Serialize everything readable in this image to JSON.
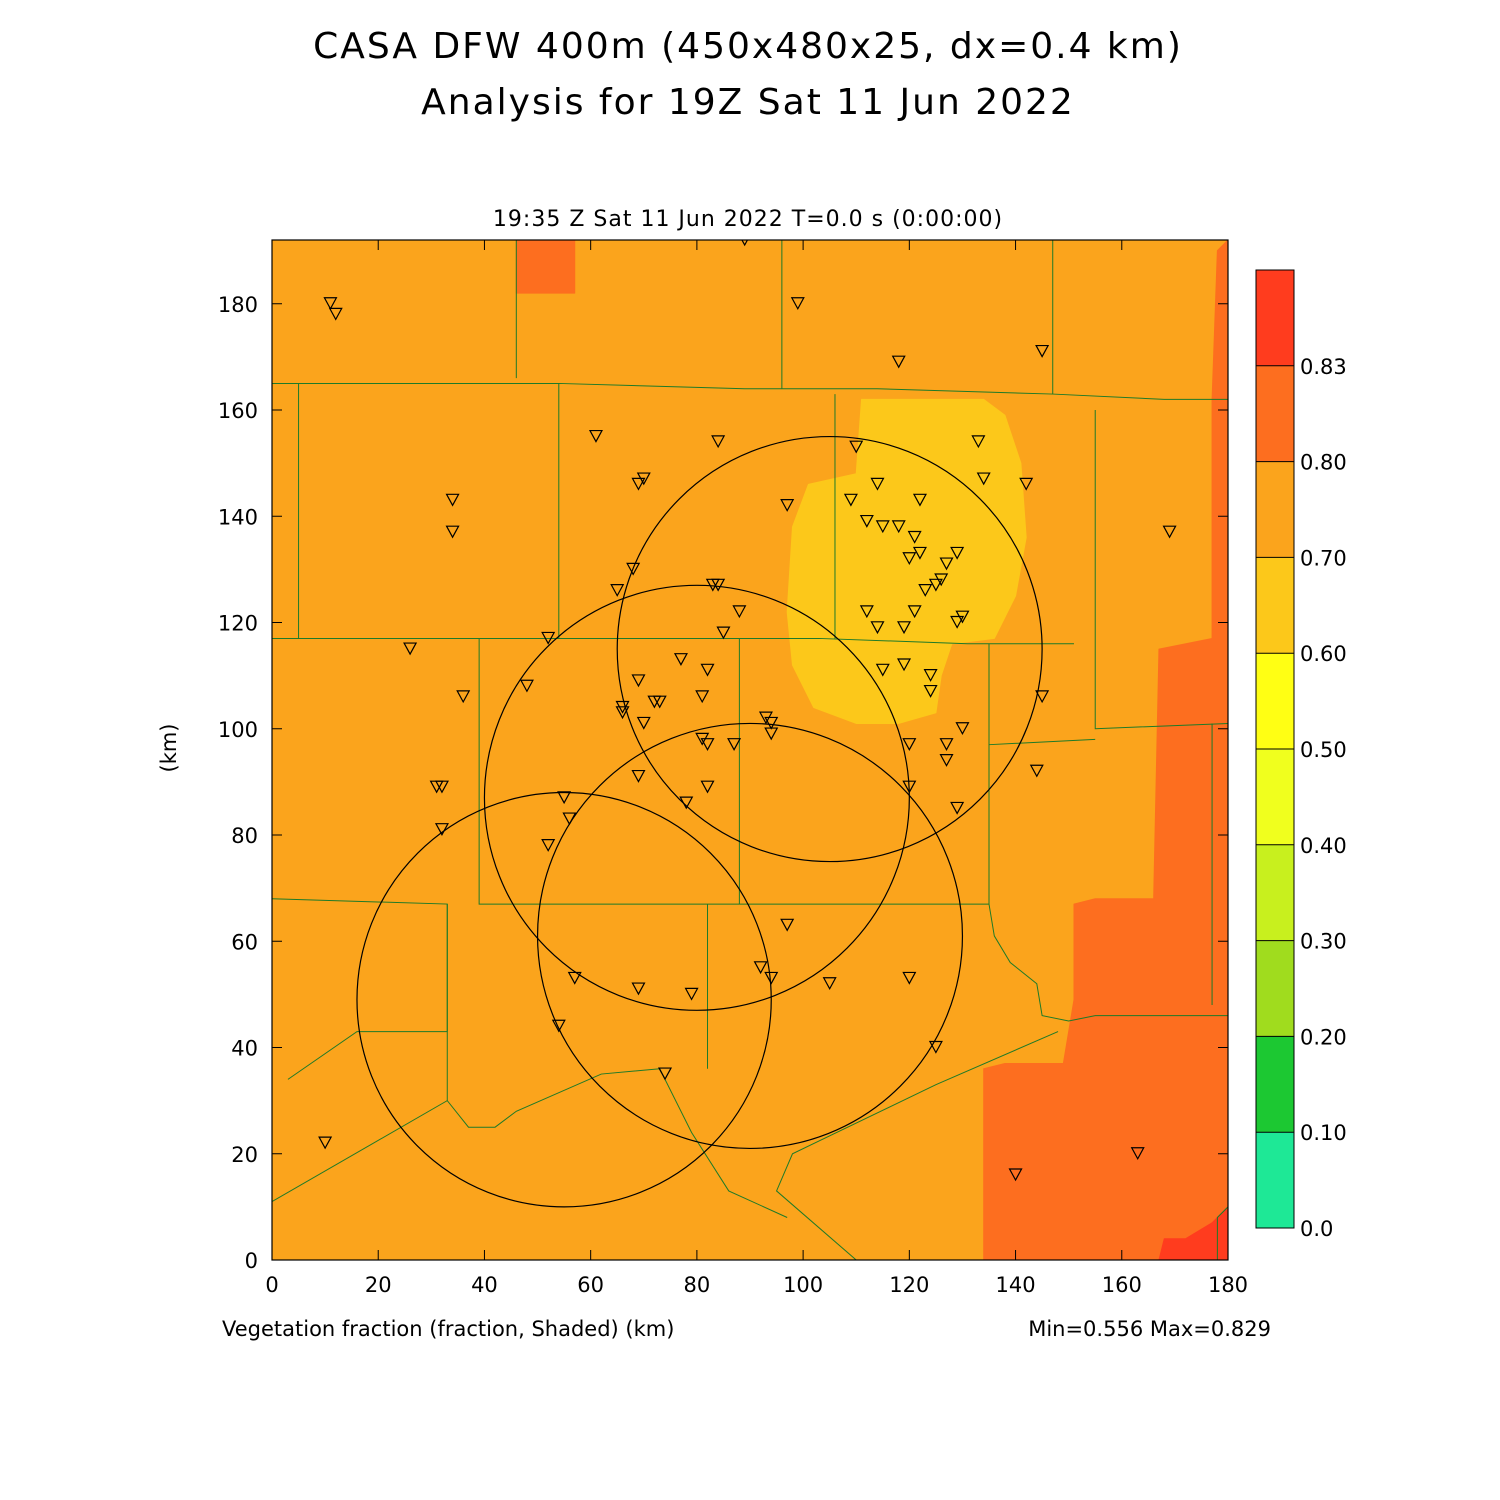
{
  "title": {
    "line1": "CASA DFW 400m (450x480x25, dx=0.4 km)",
    "line2": "Analysis for 19Z Sat 11 Jun 2022"
  },
  "subtitle": "19:35 Z Sat 11 Jun 2022   T=0.0 s (0:00:00)",
  "footer": {
    "field_label": "Vegetation fraction (fraction, Shaded)  (km)",
    "minmax": "Min=0.556 Max=0.829"
  },
  "chart_data": {
    "type": "heatmap",
    "field": "Vegetation fraction",
    "units": "fraction",
    "xlabel": "",
    "ylabel": "(km)",
    "xlim": [
      0,
      180
    ],
    "ylim": [
      0,
      192
    ],
    "x_ticks": [
      0,
      20,
      40,
      60,
      80,
      100,
      120,
      140,
      160,
      180
    ],
    "y_ticks": [
      0,
      20,
      40,
      60,
      80,
      100,
      120,
      140,
      160,
      180
    ],
    "colorbar": {
      "levels": [
        "0.0",
        "0.10",
        "0.20",
        "0.30",
        "0.40",
        "0.50",
        "0.60",
        "0.70",
        "0.80",
        "0.83"
      ],
      "colors": [
        "#1ee896",
        "#1cc832",
        "#a0dc1e",
        "#c8f01e",
        "#f0ff1e",
        "#ffff14",
        "#fcc81a",
        "#fba41c",
        "#fd6e1f",
        "#ff3c1e"
      ]
    },
    "background_color": "#fba41c",
    "shaded_regions": [
      {
        "level": "0.50-0.60",
        "color": "#fcc81a",
        "points": [
          [
            111,
            162
          ],
          [
            134,
            162
          ],
          [
            138,
            159
          ],
          [
            141,
            150
          ],
          [
            142,
            136
          ],
          [
            140,
            125
          ],
          [
            136,
            117
          ],
          [
            128,
            116
          ],
          [
            126,
            110
          ],
          [
            125,
            103
          ],
          [
            118,
            101
          ],
          [
            110,
            101
          ],
          [
            102,
            104
          ],
          [
            98,
            112
          ],
          [
            97,
            122
          ],
          [
            98,
            138
          ],
          [
            101,
            146
          ],
          [
            110,
            148
          ]
        ]
      },
      {
        "level": "0.70-0.80",
        "color": "#fd6e1f",
        "points": [
          [
            46,
            192
          ],
          [
            57,
            192
          ],
          [
            57,
            182
          ],
          [
            46,
            182
          ]
        ]
      },
      {
        "level": "0.70-0.80",
        "color": "#fd6e1f",
        "points": [
          [
            134,
            0
          ],
          [
            134,
            36
          ],
          [
            138,
            37
          ],
          [
            149,
            37
          ],
          [
            151,
            49
          ],
          [
            151,
            67
          ],
          [
            155,
            68
          ],
          [
            166,
            68
          ],
          [
            167,
            115
          ],
          [
            177,
            117
          ],
          [
            177,
            162
          ],
          [
            178,
            190
          ],
          [
            180,
            192
          ],
          [
            180,
            0
          ]
        ]
      },
      {
        "level": "0.80-0.83",
        "color": "#ff3c1e",
        "points": [
          [
            167,
            0
          ],
          [
            168,
            4
          ],
          [
            172,
            4
          ],
          [
            177,
            7
          ],
          [
            180,
            10
          ],
          [
            180,
            0
          ]
        ]
      }
    ],
    "range_rings": [
      {
        "center": [
          105,
          115
        ],
        "radius": 40
      },
      {
        "center": [
          80,
          87
        ],
        "radius": 40
      },
      {
        "center": [
          90,
          61
        ],
        "radius": 40
      },
      {
        "center": [
          55,
          49
        ],
        "radius": 39
      }
    ],
    "county_boundaries": [
      [
        [
          0,
          165
        ],
        [
          54,
          165
        ],
        [
          89,
          164
        ],
        [
          114,
          164
        ],
        [
          147,
          163
        ],
        [
          168,
          162
        ],
        [
          180,
          162
        ]
      ],
      [
        [
          5,
          165
        ],
        [
          5,
          117
        ]
      ],
      [
        [
          0,
          117
        ],
        [
          39,
          117
        ],
        [
          78,
          117
        ],
        [
          103,
          117
        ],
        [
          131,
          116
        ],
        [
          151,
          116
        ]
      ],
      [
        [
          54,
          165
        ],
        [
          54,
          117
        ]
      ],
      [
        [
          106,
          163
        ],
        [
          106,
          117
        ]
      ],
      [
        [
          46,
          192
        ],
        [
          46,
          166
        ]
      ],
      [
        [
          96,
          192
        ],
        [
          96,
          164
        ]
      ],
      [
        [
          147,
          192
        ],
        [
          147,
          163
        ]
      ],
      [
        [
          155,
          160
        ],
        [
          155,
          100
        ],
        [
          180,
          101
        ]
      ],
      [
        [
          39,
          117
        ],
        [
          39,
          67
        ],
        [
          88,
          67
        ],
        [
          135,
          67
        ],
        [
          135,
          116
        ]
      ],
      [
        [
          88,
          117
        ],
        [
          88,
          67
        ]
      ],
      [
        [
          135,
          97
        ],
        [
          155,
          98
        ]
      ],
      [
        [
          0,
          68
        ],
        [
          33,
          67
        ],
        [
          33,
          43
        ]
      ],
      [
        [
          33,
          67
        ],
        [
          33,
          30
        ],
        [
          37,
          25
        ],
        [
          42,
          25
        ],
        [
          46,
          28
        ],
        [
          62,
          35
        ],
        [
          73,
          36
        ],
        [
          79,
          24
        ],
        [
          86,
          13
        ],
        [
          97,
          8
        ]
      ],
      [
        [
          82,
          67
        ],
        [
          82,
          36
        ]
      ],
      [
        [
          0,
          11
        ],
        [
          33,
          30
        ]
      ],
      [
        [
          3,
          34
        ],
        [
          16,
          43
        ],
        [
          33,
          43
        ]
      ],
      [
        [
          135,
          67
        ],
        [
          136,
          61
        ],
        [
          139,
          56
        ],
        [
          144,
          52
        ],
        [
          145,
          46
        ],
        [
          150,
          45
        ],
        [
          155,
          46
        ],
        [
          180,
          46
        ]
      ],
      [
        [
          177,
          101
        ],
        [
          177,
          48
        ]
      ],
      [
        [
          148,
          43
        ],
        [
          125,
          33
        ],
        [
          98,
          20
        ],
        [
          95,
          13
        ],
        [
          110,
          0
        ]
      ],
      [
        [
          178,
          0
        ],
        [
          178,
          8
        ],
        [
          180,
          10
        ]
      ]
    ],
    "stations": [
      [
        11,
        180
      ],
      [
        12,
        178
      ],
      [
        89,
        192
      ],
      [
        99,
        180
      ],
      [
        118,
        169
      ],
      [
        145,
        171
      ],
      [
        34,
        143
      ],
      [
        34,
        137
      ],
      [
        61,
        155
      ],
      [
        70,
        147
      ],
      [
        69,
        146
      ],
      [
        84,
        154
      ],
      [
        97,
        142
      ],
      [
        110,
        153
      ],
      [
        114,
        146
      ],
      [
        109,
        143
      ],
      [
        112,
        139
      ],
      [
        115,
        138
      ],
      [
        118,
        138
      ],
      [
        122,
        143
      ],
      [
        133,
        154
      ],
      [
        134,
        147
      ],
      [
        142,
        146
      ],
      [
        169,
        137
      ],
      [
        121,
        136
      ],
      [
        120,
        132
      ],
      [
        122,
        133
      ],
      [
        127,
        131
      ],
      [
        129,
        133
      ],
      [
        126,
        128
      ],
      [
        125,
        127
      ],
      [
        123,
        126
      ],
      [
        68,
        130
      ],
      [
        65,
        126
      ],
      [
        83,
        127
      ],
      [
        84,
        127
      ],
      [
        88,
        122
      ],
      [
        85,
        118
      ],
      [
        112,
        122
      ],
      [
        114,
        119
      ],
      [
        119,
        119
      ],
      [
        121,
        122
      ],
      [
        129,
        120
      ],
      [
        130,
        121
      ],
      [
        26,
        115
      ],
      [
        52,
        117
      ],
      [
        77,
        113
      ],
      [
        82,
        111
      ],
      [
        115,
        111
      ],
      [
        119,
        112
      ],
      [
        124,
        110
      ],
      [
        124,
        107
      ],
      [
        36,
        106
      ],
      [
        48,
        108
      ],
      [
        66,
        104
      ],
      [
        69,
        109
      ],
      [
        70,
        101
      ],
      [
        72,
        105
      ],
      [
        73,
        105
      ],
      [
        81,
        106
      ],
      [
        66,
        103
      ],
      [
        93,
        102
      ],
      [
        94,
        101
      ],
      [
        94,
        99
      ],
      [
        127,
        97
      ],
      [
        130,
        100
      ],
      [
        145,
        106
      ],
      [
        81,
        98
      ],
      [
        82,
        97
      ],
      [
        87,
        97
      ],
      [
        120,
        97
      ],
      [
        127,
        94
      ],
      [
        144,
        92
      ],
      [
        31,
        89
      ],
      [
        32,
        89
      ],
      [
        32,
        81
      ],
      [
        69,
        91
      ],
      [
        55,
        87
      ],
      [
        56,
        83
      ],
      [
        52,
        78
      ],
      [
        78,
        86
      ],
      [
        82,
        89
      ],
      [
        120,
        89
      ],
      [
        129,
        85
      ],
      [
        97,
        63
      ],
      [
        92,
        55
      ],
      [
        94,
        53
      ],
      [
        105,
        52
      ],
      [
        120,
        53
      ],
      [
        57,
        53
      ],
      [
        69,
        51
      ],
      [
        79,
        50
      ],
      [
        54,
        44
      ],
      [
        125,
        40
      ],
      [
        74,
        35
      ],
      [
        10,
        22
      ],
      [
        140,
        16
      ],
      [
        163,
        20
      ]
    ]
  }
}
